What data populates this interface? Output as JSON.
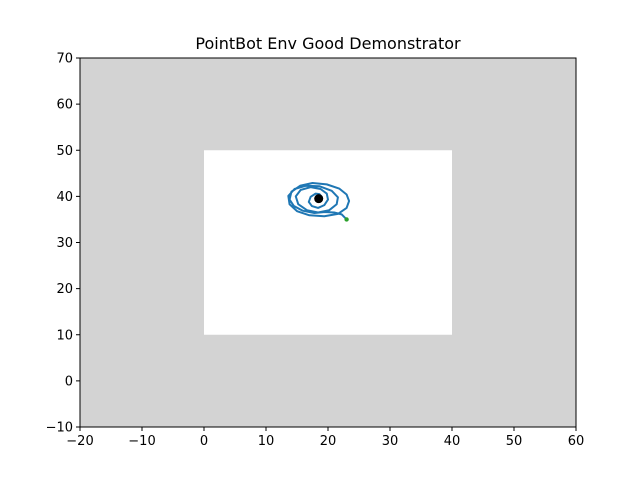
{
  "chart_data": {
    "type": "scatter",
    "title": "PointBot Env Good Demonstrator",
    "xlabel": "",
    "ylabel": "",
    "xlim": [
      -20,
      60
    ],
    "ylim": [
      -10,
      70
    ],
    "x_ticks": [
      -20,
      -10,
      0,
      10,
      20,
      30,
      40,
      50,
      60
    ],
    "y_ticks": [
      -10,
      0,
      10,
      20,
      30,
      40,
      50,
      60,
      70
    ],
    "x_tick_labels": [
      "−20",
      "−10",
      "0",
      "10",
      "20",
      "30",
      "40",
      "50",
      "60"
    ],
    "y_tick_labels": [
      "−10",
      "0",
      "10",
      "20",
      "30",
      "40",
      "50",
      "60",
      "70"
    ],
    "grid": false,
    "background_color": "#d3d3d3",
    "safe_region": {
      "x": [
        0,
        40
      ],
      "y": [
        10,
        50
      ],
      "color": "#ffffff"
    },
    "start": {
      "x": 23,
      "y": 35,
      "color": "#2ca02c"
    },
    "goal": {
      "x": 18.5,
      "y": 39.5,
      "color": "#000000"
    },
    "trajectory": {
      "color": "#1f77b4",
      "x": [
        23.0,
        22.2,
        21.0,
        19.5,
        17.8,
        15.9,
        14.5,
        13.8,
        14.1,
        15.5,
        17.5,
        19.8,
        21.8,
        23.0,
        23.4,
        23.0,
        21.6,
        19.4,
        17.0,
        15.0,
        13.8,
        13.6,
        14.6,
        16.4,
        18.6,
        20.6,
        21.6,
        21.4,
        20.2,
        18.4,
        16.6,
        15.2,
        14.8,
        15.6,
        17.2,
        18.8,
        19.8,
        20.0,
        19.4,
        18.4,
        17.4,
        16.9,
        17.2,
        18.0,
        18.6,
        19.0,
        18.8,
        18.5
      ],
      "y": [
        35.0,
        36.1,
        36.5,
        36.6,
        36.4,
        36.9,
        37.9,
        39.3,
        41.0,
        42.3,
        42.9,
        42.6,
        41.7,
        40.4,
        39.0,
        37.5,
        36.2,
        35.7,
        35.9,
        36.8,
        38.3,
        40.1,
        41.6,
        42.3,
        42.2,
        41.2,
        39.8,
        38.3,
        37.0,
        36.5,
        37.0,
        38.3,
        40.0,
        41.4,
        42.0,
        41.6,
        40.6,
        39.3,
        38.1,
        37.5,
        37.9,
        38.8,
        39.9,
        40.6,
        40.5,
        39.9,
        39.4,
        39.5
      ]
    }
  }
}
